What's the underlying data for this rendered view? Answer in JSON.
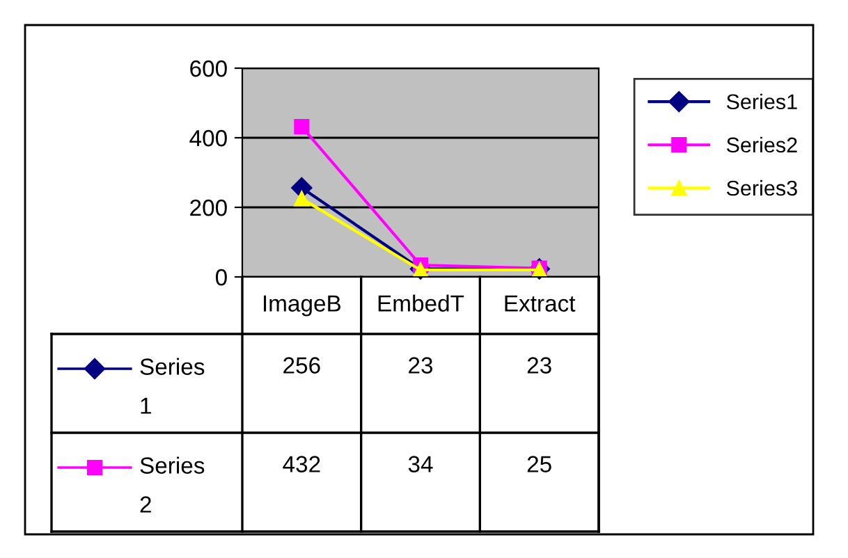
{
  "chart_data": {
    "type": "line",
    "categories": [
      "ImageB",
      "EmbedT",
      "Extract"
    ],
    "series": [
      {
        "name": "Series1",
        "color": "#000080",
        "marker": "diamond",
        "values": [
          256,
          23,
          23
        ],
        "value_labels": [
          "256",
          "23",
          "23"
        ]
      },
      {
        "name": "Series2",
        "color": "#ff00ff",
        "marker": "square",
        "values": [
          432,
          34,
          25
        ],
        "value_labels": [
          "432",
          "34",
          "25"
        ]
      },
      {
        "name": "Series3",
        "color": "#ffff00",
        "marker": "triangle",
        "values": [
          225,
          20,
          20
        ]
      }
    ],
    "ylim": [
      0,
      600
    ],
    "yticks": [
      0,
      200,
      400,
      600
    ],
    "grid": "y",
    "legend": "right"
  }
}
